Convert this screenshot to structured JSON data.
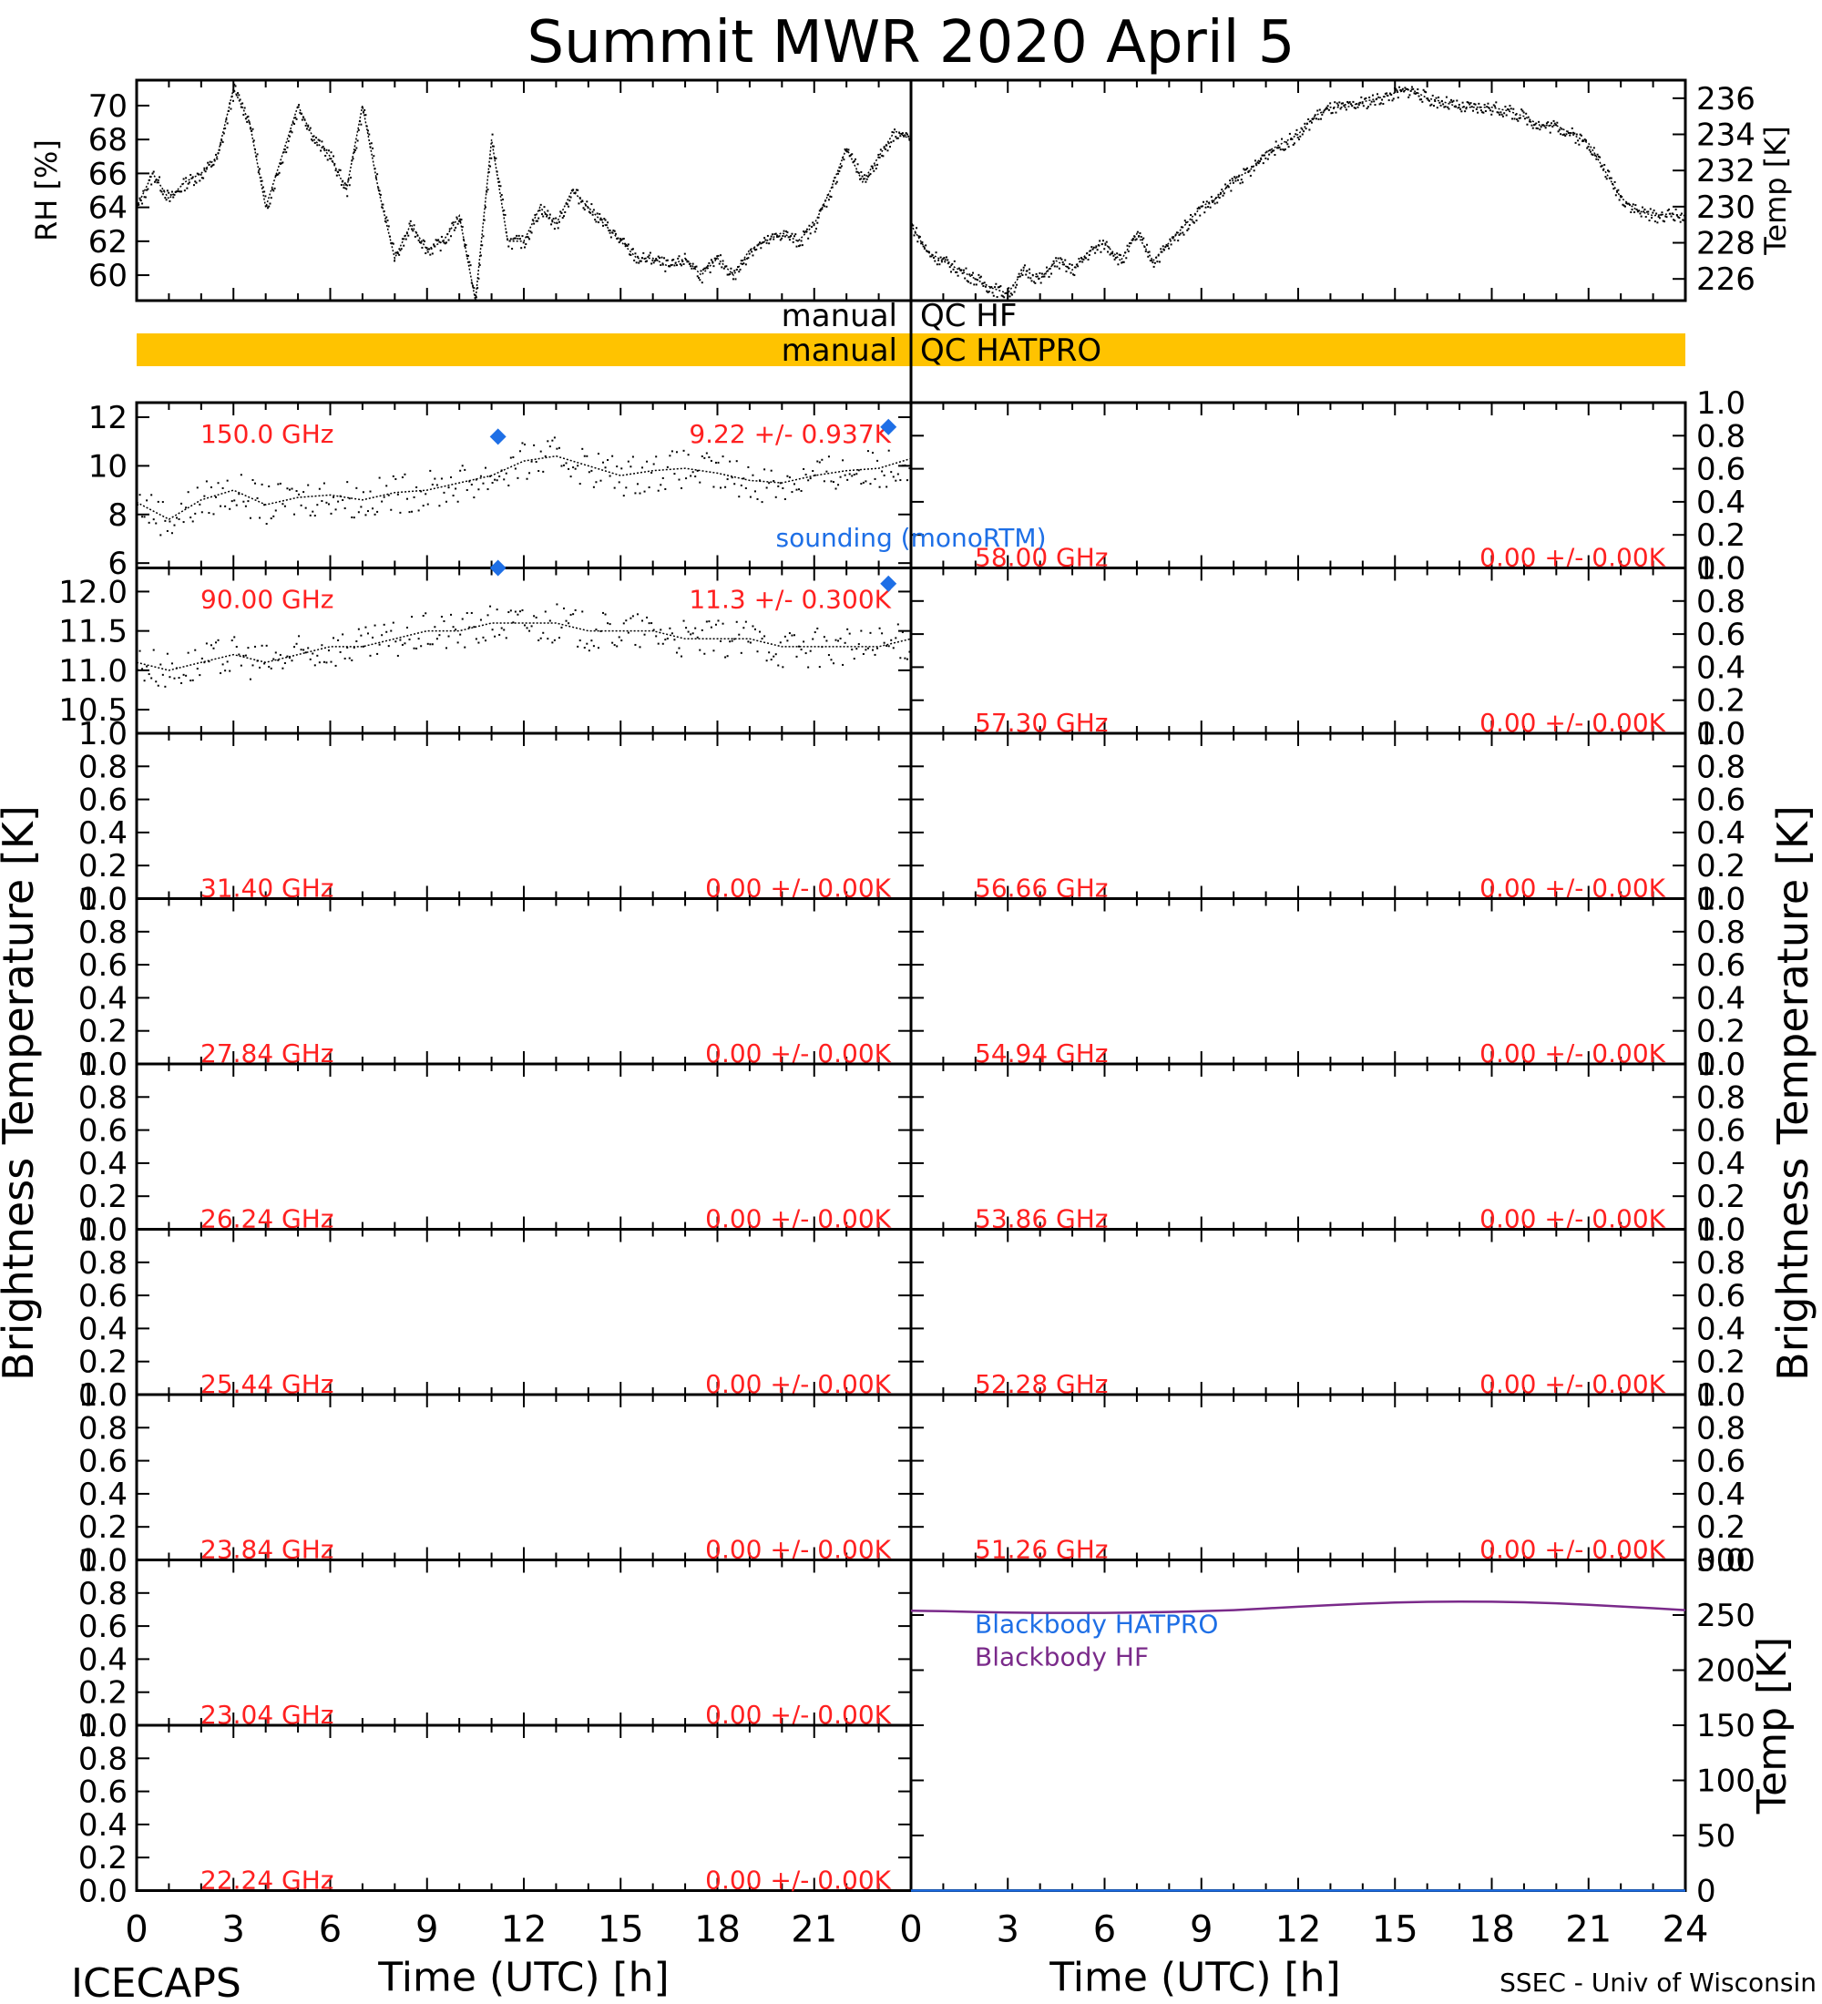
{
  "title": "Summit MWR 2020 April  5",
  "footer_left": "ICECAPS",
  "footer_right": "SSEC - Univ of Wisconsin",
  "colors": {
    "axis": "#000000",
    "data_dots": "#000000",
    "channel_label": "#ff2020",
    "sounding": "#1e6fe6",
    "blackbody_hatpro": "#1e6fe6",
    "blackbody_hf": "#7a2a8a",
    "qc_band": "#ffc300"
  },
  "qc": {
    "hf_left": "manual",
    "hf_right": "QC HF",
    "hatpro_left": "manual",
    "hatpro_right": "QC HATPRO"
  },
  "chart_data": [
    {
      "id": "rh",
      "type": "line",
      "ylabel": "RH [%]",
      "ylim": [
        58.5,
        71.5
      ],
      "yticks": [
        60,
        62,
        64,
        66,
        68,
        70
      ],
      "xlim": [
        0,
        24
      ],
      "series": [
        {
          "name": "",
          "x": [
            0,
            0.5,
            1,
            1.5,
            2,
            2.5,
            3,
            3.5,
            4,
            4.5,
            5,
            5.5,
            6,
            6.5,
            7,
            7.5,
            8,
            8.5,
            9,
            9.5,
            10,
            10.5,
            11,
            11.5,
            12,
            12.5,
            13,
            13.5,
            14,
            14.5,
            15,
            15.5,
            16,
            16.5,
            17,
            17.5,
            18,
            18.5,
            19,
            19.5,
            20,
            20.5,
            21,
            21.5,
            22,
            22.5,
            23,
            23.5,
            24
          ],
          "y": [
            64,
            66,
            64.5,
            65.5,
            66,
            67,
            71,
            69,
            64,
            67,
            70,
            68,
            67,
            65,
            70,
            65,
            61,
            63,
            61.5,
            62,
            63.5,
            58.5,
            68,
            62,
            62,
            64,
            63,
            65,
            64,
            63,
            62,
            61,
            61,
            60.5,
            61,
            60,
            61,
            60,
            61.5,
            62,
            62.5,
            62,
            63,
            65,
            67.5,
            65.5,
            67,
            68.5,
            68
          ]
        }
      ]
    },
    {
      "id": "temp",
      "type": "line",
      "ylabel": "Temp [K]",
      "ylim": [
        224.8,
        237
      ],
      "yticks": [
        226,
        228,
        230,
        232,
        234,
        236
      ],
      "xlim": [
        0,
        24
      ],
      "series": [
        {
          "name": "",
          "x": [
            0,
            0.5,
            1,
            1.5,
            2,
            2.5,
            3,
            3.5,
            4,
            4.5,
            5,
            5.5,
            6,
            6.5,
            7,
            7.5,
            8,
            8.5,
            9,
            9.5,
            10,
            10.5,
            11,
            11.5,
            12,
            12.5,
            13,
            13.5,
            14,
            14.5,
            15,
            15.5,
            16,
            16.5,
            17,
            17.5,
            18,
            18.5,
            19,
            19.5,
            20,
            20.5,
            21,
            21.5,
            22,
            22.5,
            23,
            23.5,
            24
          ],
          "y": [
            229,
            227.5,
            227,
            226.5,
            226,
            225.5,
            225.2,
            226.5,
            226,
            227,
            226.5,
            227.5,
            228,
            227,
            228.5,
            227,
            228,
            229,
            230,
            230.5,
            231.5,
            232,
            233,
            233.5,
            234,
            235,
            235.5,
            235.5,
            235.8,
            236,
            236.3,
            236.5,
            236,
            235.8,
            235.5,
            235.5,
            235.5,
            235.3,
            235,
            234.5,
            234.5,
            234,
            233.5,
            232,
            230.5,
            229.8,
            229.5,
            229.6,
            229.5
          ]
        }
      ]
    },
    {
      "id": "tb-150",
      "type": "line",
      "panel_side": "left",
      "ylim": [
        5.8,
        12.6
      ],
      "yticks": [
        6,
        8,
        10,
        12
      ],
      "ytick_labels": [
        "6",
        "8",
        "10",
        "12"
      ],
      "xlim": [
        0,
        24
      ],
      "label_freq": "150.0 GHz",
      "label_stats": "9.22 +/- 0.937K",
      "series": [
        {
          "name": "",
          "x": [
            0,
            1,
            2,
            3,
            4,
            5,
            6,
            7,
            8,
            9,
            10,
            11,
            12,
            13,
            14,
            15,
            16,
            17,
            18,
            19,
            20,
            21,
            22,
            23,
            24
          ],
          "y": [
            8.5,
            7.8,
            8.6,
            9.0,
            8.4,
            8.7,
            8.8,
            8.6,
            8.9,
            9.0,
            9.3,
            9.6,
            10.2,
            10.4,
            10.0,
            9.6,
            9.8,
            9.9,
            9.7,
            9.4,
            9.3,
            9.6,
            9.8,
            9.9,
            10.3
          ]
        }
      ],
      "sounding": {
        "x": [
          11.2,
          23.3
        ],
        "y": [
          11.2,
          11.6
        ]
      }
    },
    {
      "id": "tb-90",
      "type": "line",
      "panel_side": "left",
      "ylim": [
        10.2,
        12.3
      ],
      "yticks": [
        10.5,
        11.0,
        11.5,
        12.0
      ],
      "ytick_labels": [
        "10.5",
        "11.0",
        "11.5",
        "12.0"
      ],
      "xlim": [
        0,
        24
      ],
      "label_freq": "90.00 GHz",
      "label_stats": "11.3 +/- 0.300K",
      "series": [
        {
          "name": "",
          "x": [
            0,
            1,
            2,
            3,
            4,
            5,
            6,
            7,
            8,
            9,
            10,
            11,
            12,
            13,
            14,
            15,
            16,
            17,
            18,
            19,
            20,
            21,
            22,
            23,
            24
          ],
          "y": [
            11.1,
            11.0,
            11.1,
            11.2,
            11.1,
            11.2,
            11.3,
            11.3,
            11.4,
            11.5,
            11.5,
            11.6,
            11.6,
            11.6,
            11.5,
            11.5,
            11.5,
            11.4,
            11.4,
            11.4,
            11.3,
            11.3,
            11.3,
            11.3,
            11.4
          ]
        }
      ],
      "sounding": {
        "x": [
          11.2,
          23.3
        ],
        "y": [
          12.3,
          12.1
        ]
      }
    },
    {
      "id": "tb-31.40",
      "type": "line",
      "panel_side": "left",
      "ylim": [
        0,
        1
      ],
      "xlim": [
        0,
        24
      ],
      "label_freq": "31.40 GHz",
      "label_stats": "0.00 +/- 0.00K"
    },
    {
      "id": "tb-27.84",
      "type": "line",
      "panel_side": "left",
      "ylim": [
        0,
        1
      ],
      "xlim": [
        0,
        24
      ],
      "label_freq": "27.84 GHz",
      "label_stats": "0.00 +/- 0.00K"
    },
    {
      "id": "tb-26.24",
      "type": "line",
      "panel_side": "left",
      "ylim": [
        0,
        1
      ],
      "xlim": [
        0,
        24
      ],
      "label_freq": "26.24 GHz",
      "label_stats": "0.00 +/- 0.00K"
    },
    {
      "id": "tb-25.44",
      "type": "line",
      "panel_side": "left",
      "ylim": [
        0,
        1
      ],
      "xlim": [
        0,
        24
      ],
      "label_freq": "25.44 GHz",
      "label_stats": "0.00 +/- 0.00K"
    },
    {
      "id": "tb-23.84",
      "type": "line",
      "panel_side": "left",
      "ylim": [
        0,
        1
      ],
      "xlim": [
        0,
        24
      ],
      "label_freq": "23.84 GHz",
      "label_stats": "0.00 +/- 0.00K"
    },
    {
      "id": "tb-23.04",
      "type": "line",
      "panel_side": "left",
      "ylim": [
        0,
        1
      ],
      "xlim": [
        0,
        24
      ],
      "label_freq": "23.04 GHz",
      "label_stats": "0.00 +/- 0.00K"
    },
    {
      "id": "tb-22.24",
      "type": "line",
      "panel_side": "left",
      "ylim": [
        0,
        1
      ],
      "xlim": [
        0,
        24
      ],
      "label_freq": "22.24 GHz",
      "label_stats": "0.00 +/- 0.00K"
    },
    {
      "id": "tb-58.00",
      "type": "line",
      "panel_side": "right",
      "ylim": [
        0,
        1
      ],
      "xlim": [
        0,
        24
      ],
      "label_freq": "58.00 GHz",
      "label_stats": "0.00 +/- 0.00K"
    },
    {
      "id": "tb-57.30",
      "type": "line",
      "panel_side": "right",
      "ylim": [
        0,
        1
      ],
      "xlim": [
        0,
        24
      ],
      "label_freq": "57.30 GHz",
      "label_stats": "0.00 +/- 0.00K"
    },
    {
      "id": "tb-56.66",
      "type": "line",
      "panel_side": "right",
      "ylim": [
        0,
        1
      ],
      "xlim": [
        0,
        24
      ],
      "label_freq": "56.66 GHz",
      "label_stats": "0.00 +/- 0.00K"
    },
    {
      "id": "tb-54.94",
      "type": "line",
      "panel_side": "right",
      "ylim": [
        0,
        1
      ],
      "xlim": [
        0,
        24
      ],
      "label_freq": "54.94 GHz",
      "label_stats": "0.00 +/- 0.00K"
    },
    {
      "id": "tb-53.86",
      "type": "line",
      "panel_side": "right",
      "ylim": [
        0,
        1
      ],
      "xlim": [
        0,
        24
      ],
      "label_freq": "53.86 GHz",
      "label_stats": "0.00 +/- 0.00K"
    },
    {
      "id": "tb-52.28",
      "type": "line",
      "panel_side": "right",
      "ylim": [
        0,
        1
      ],
      "xlim": [
        0,
        24
      ],
      "label_freq": "52.28 GHz",
      "label_stats": "0.00 +/- 0.00K"
    },
    {
      "id": "tb-51.26",
      "type": "line",
      "panel_side": "right",
      "ylim": [
        0,
        1
      ],
      "xlim": [
        0,
        24
      ],
      "label_freq": "51.26 GHz",
      "label_stats": "0.00 +/- 0.00K"
    },
    {
      "id": "blackbody",
      "type": "line",
      "ylabel": "Temp [K]",
      "ylim": [
        0,
        300
      ],
      "yticks": [
        0,
        50,
        100,
        150,
        200,
        250,
        300
      ],
      "xlim": [
        0,
        24
      ],
      "series": [
        {
          "name": "Blackbody HATPRO",
          "x": [
            0,
            24
          ],
          "y": [
            0,
            0
          ]
        },
        {
          "name": "Blackbody HF",
          "x": [
            0,
            1,
            2,
            3,
            4,
            5,
            6,
            7,
            8,
            9,
            10,
            11,
            12,
            13,
            14,
            15,
            16,
            17,
            18,
            19,
            20,
            21,
            22,
            23,
            24
          ],
          "y": [
            254,
            253.5,
            252.8,
            252.3,
            252,
            252,
            252,
            252.3,
            252.8,
            253.5,
            254.5,
            256,
            257.5,
            259,
            260.3,
            261.3,
            262,
            262.2,
            262.1,
            261.6,
            260.7,
            259.3,
            257.8,
            256.2,
            254.5
          ]
        }
      ]
    }
  ],
  "axes": {
    "brightness_label": "Brightness Temperature [K]",
    "xlabel": "Time (UTC) [h]",
    "xticks_left": [
      "0",
      "3",
      "6",
      "9",
      "12",
      "15",
      "18",
      "21"
    ],
    "xticks_right": [
      "0",
      "3",
      "6",
      "9",
      "12",
      "15",
      "18",
      "21",
      "24"
    ],
    "ytick_labels_01": [
      "0.0",
      "0.2",
      "0.4",
      "0.6",
      "0.8",
      "1.0"
    ],
    "sounding_label": "sounding (monoRTM)"
  }
}
